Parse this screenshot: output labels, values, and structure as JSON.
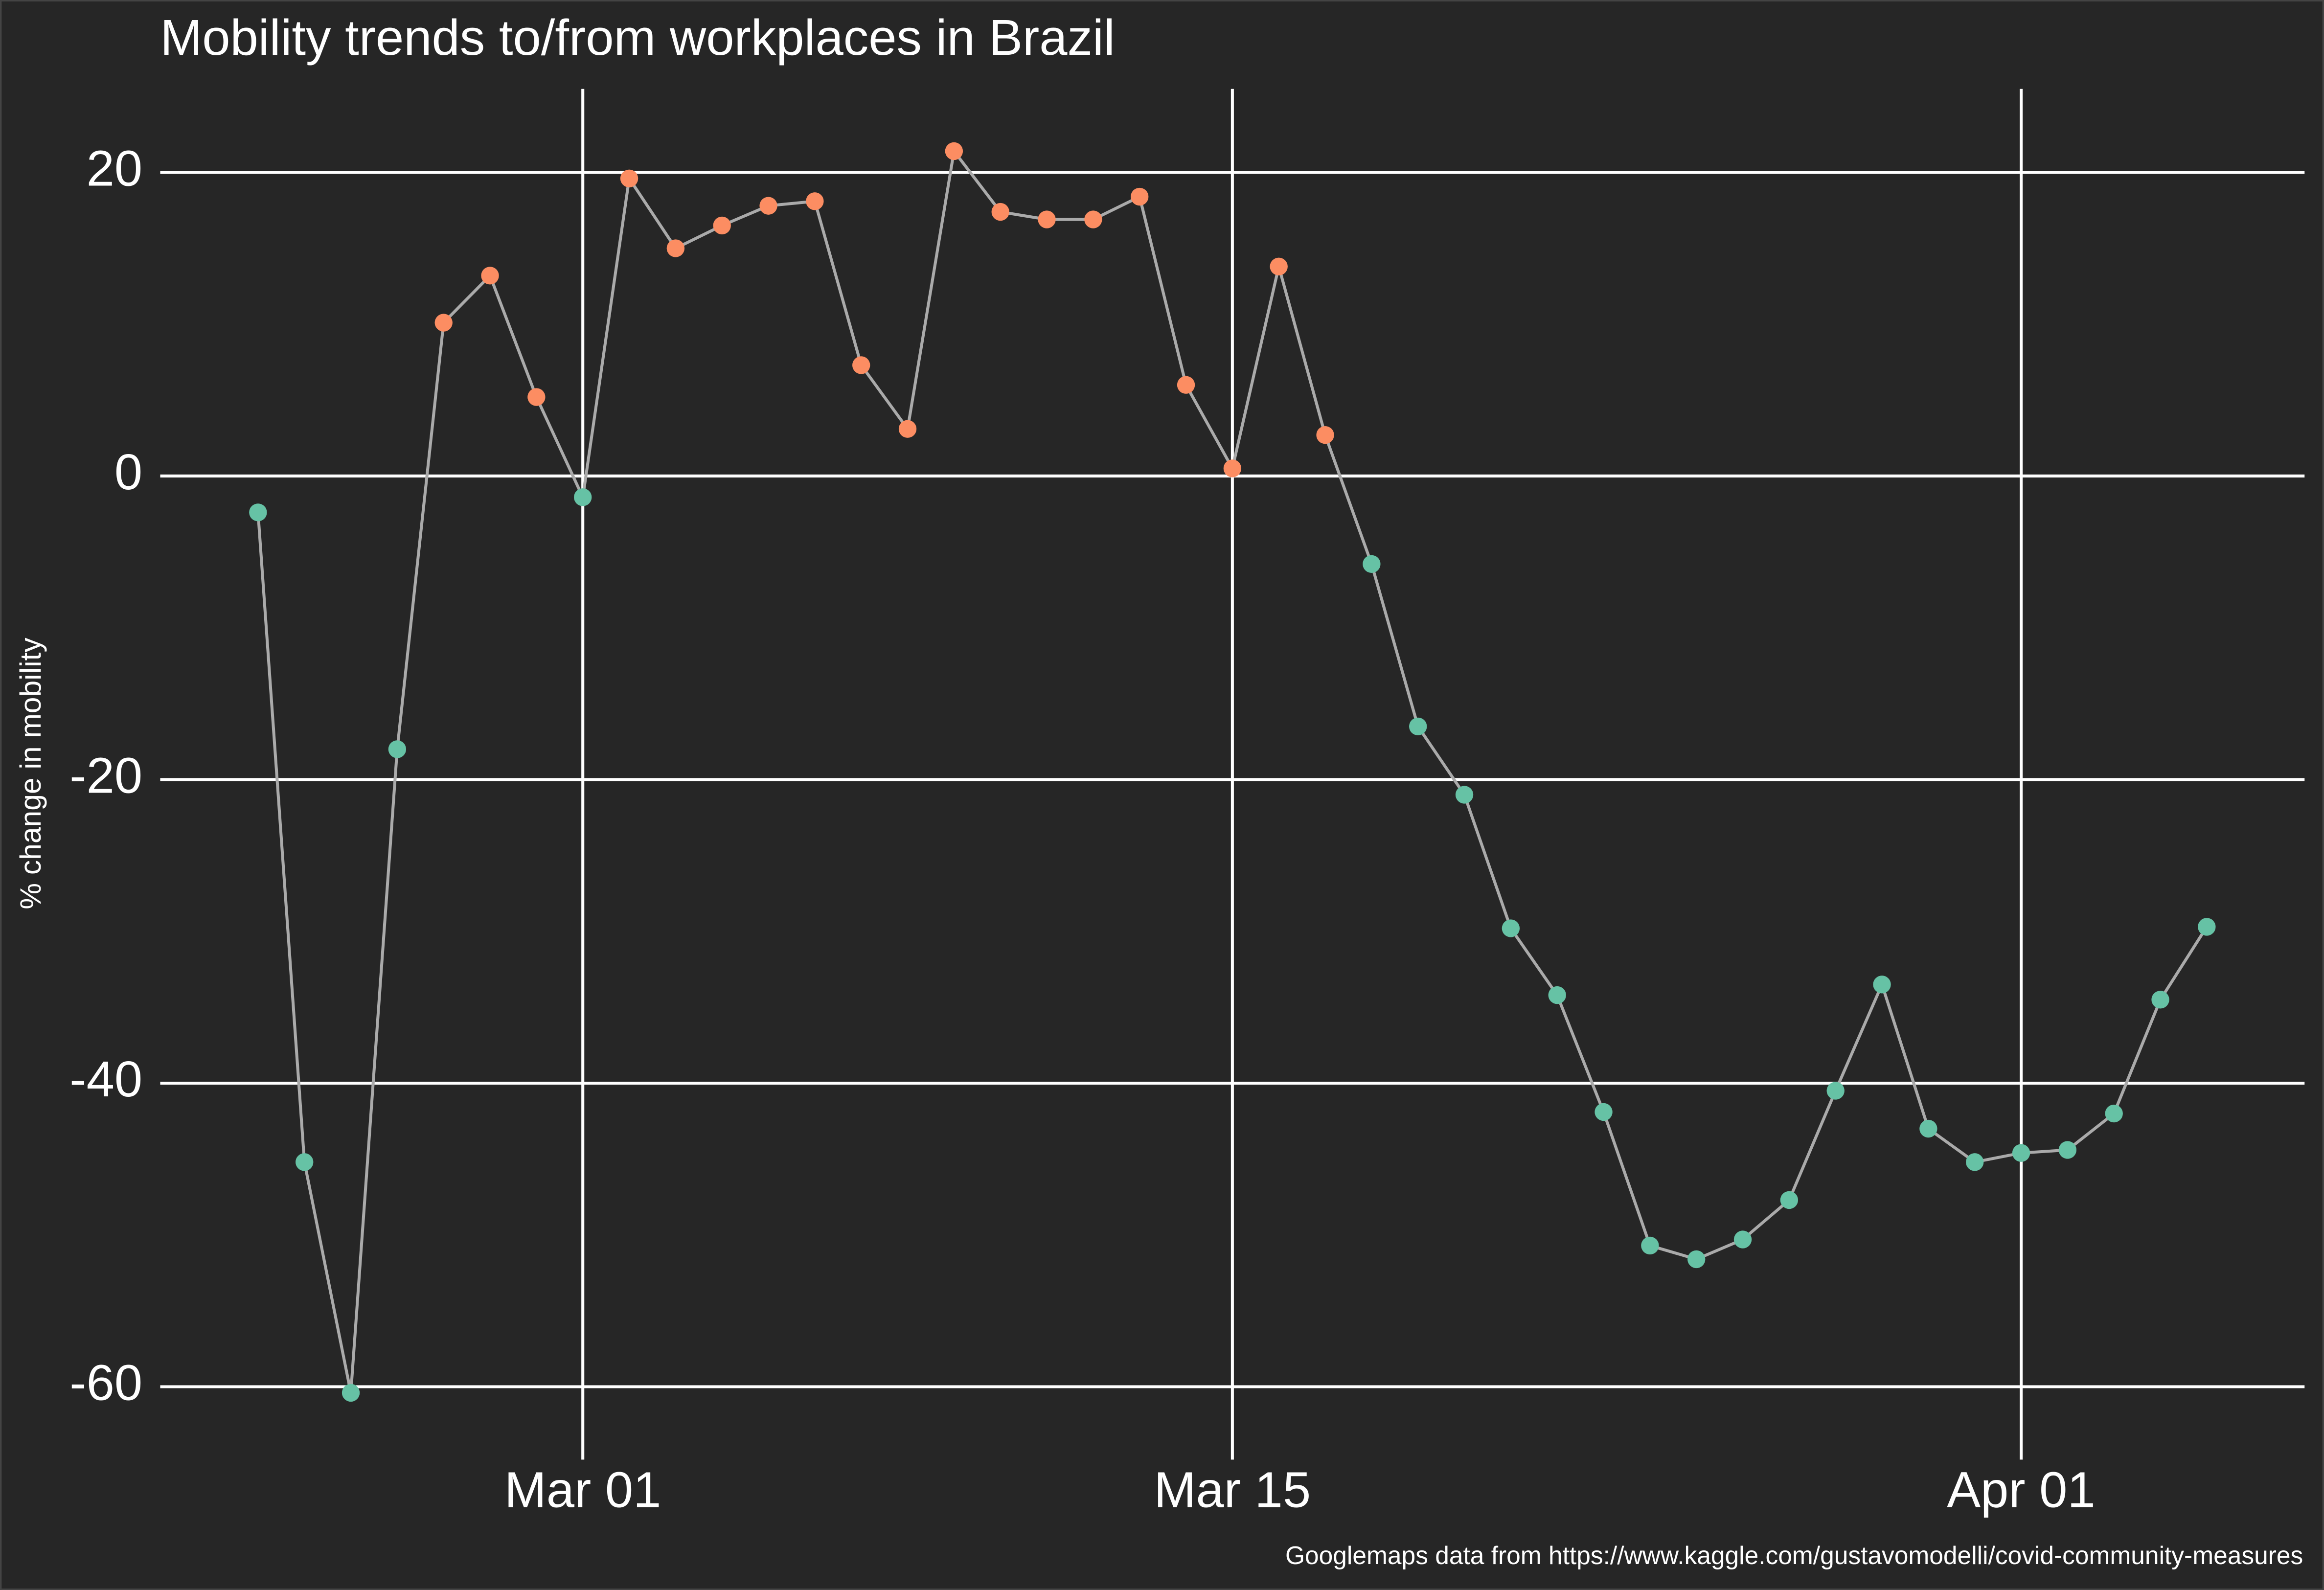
{
  "chart_data": {
    "type": "line",
    "title": "Mobility trends to/from workplaces in Brazil",
    "y_label": "% change in mobility",
    "caption": "Googlemaps data from https://www.kaggle.com/gustavomodelli/covid-community-measures",
    "x": [
      "Feb 23",
      "Feb 24",
      "Feb 25",
      "Feb 26",
      "Feb 27",
      "Feb 28",
      "Feb 29",
      "Mar 01",
      "Mar 02",
      "Mar 03",
      "Mar 04",
      "Mar 05",
      "Mar 06",
      "Mar 07",
      "Mar 08",
      "Mar 09",
      "Mar 10",
      "Mar 11",
      "Mar 12",
      "Mar 13",
      "Mar 14",
      "Mar 15",
      "Mar 16",
      "Mar 17",
      "Mar 18",
      "Mar 19",
      "Mar 20",
      "Mar 21",
      "Mar 22",
      "Mar 23",
      "Mar 24",
      "Mar 25",
      "Mar 26",
      "Mar 27",
      "Mar 28",
      "Mar 29",
      "Mar 30",
      "Mar 31",
      "Apr 01",
      "Apr 02",
      "Apr 03",
      "Apr 04",
      "Apr 05"
    ],
    "values": [
      -2.4,
      -45.2,
      -60.4,
      -18.0,
      10.1,
      13.2,
      5.2,
      -1.4,
      19.6,
      15.0,
      16.5,
      17.8,
      18.1,
      7.3,
      3.1,
      21.4,
      17.4,
      16.9,
      16.9,
      18.4,
      6.0,
      0.5,
      13.8,
      2.7,
      -5.8,
      -16.5,
      -21.0,
      -29.8,
      -34.2,
      -41.9,
      -50.7,
      -51.6,
      -50.3,
      -47.7,
      -40.5,
      -33.5,
      -43.0,
      -45.2,
      -44.6,
      -44.4,
      -42.0,
      -34.5,
      -29.7
    ],
    "xticks": [
      "Mar 01",
      "Mar 15",
      "Apr 01"
    ],
    "ylim": [
      -64.8,
      25.5
    ],
    "yticks": [
      -60,
      -40,
      -20,
      0,
      20
    ],
    "grid": true,
    "line_color": "#aaaaaa",
    "colors": {
      "positive": "#fc8d62",
      "negative": "#66c2a5"
    }
  }
}
